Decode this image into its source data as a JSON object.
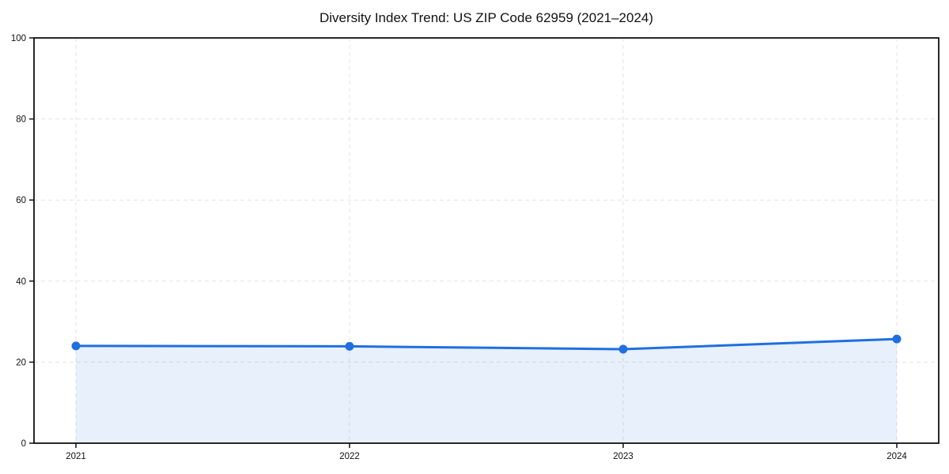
{
  "title": "Diversity Index Trend: US ZIP Code 62959 (2021–2024)",
  "chart_data": {
    "type": "line",
    "title": "Diversity Index Trend: US ZIP Code 62959 (2021–2024)",
    "x": [
      2021,
      2022,
      2023,
      2024
    ],
    "series": [
      {
        "name": "Diversity Index",
        "values": [
          24.0,
          23.9,
          23.2,
          25.7
        ]
      }
    ],
    "xlabel": "",
    "ylabel": "",
    "ylim": [
      0,
      100
    ],
    "yticks": [
      0,
      20,
      40,
      60,
      80,
      100
    ],
    "xtick_labels": [
      "2021",
      "2022",
      "2023",
      "2024"
    ],
    "grid": "dashed",
    "legend_position": "none",
    "area_fill": true,
    "colors": {
      "line": "#1f6fe0",
      "marker": "#1f6fe0",
      "fill": "#1f6fe0",
      "fill_opacity": 0.1,
      "grid": "#e3e3e3",
      "spine": "#111111",
      "tick_text": "#111111",
      "background": "#ffffff"
    }
  }
}
